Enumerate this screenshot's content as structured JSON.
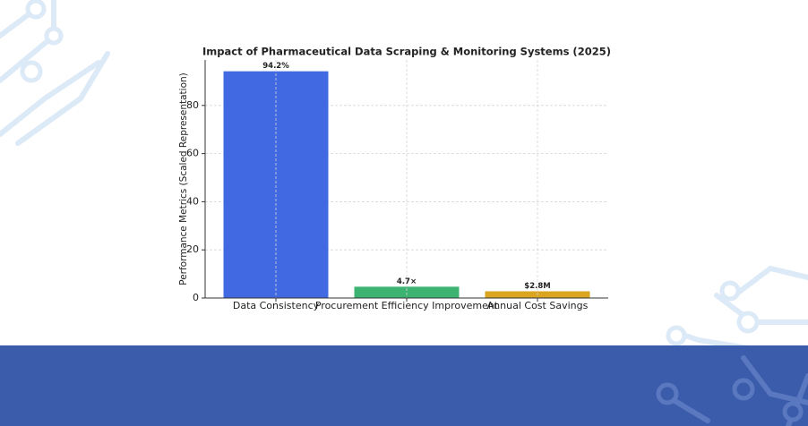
{
  "chart_data": {
    "type": "bar",
    "title": "Impact of Pharmaceutical Data Scraping & Monitoring Systems (2025)",
    "y_label": "Performance Metrics (Scaled Representation)",
    "categories": [
      "Data Consistency",
      "Procurement Efficiency Improvement",
      "Annual Cost Savings"
    ],
    "values": [
      94.2,
      4.7,
      2.8
    ],
    "value_labels": [
      "94.2%",
      "4.7×",
      "$2.8M"
    ],
    "colors": [
      "#4169e1",
      "#3cb371",
      "#daa520"
    ],
    "ylim": [
      0,
      98.9
    ],
    "yticks": [
      0,
      20,
      40,
      60,
      80
    ],
    "grid": true
  }
}
